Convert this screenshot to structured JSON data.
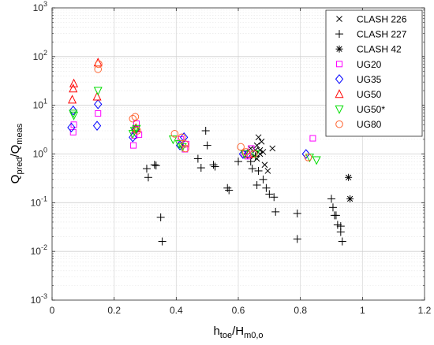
{
  "chart_data": {
    "type": "scatter",
    "xlabel": "h_toe/H_m0,o",
    "ylabel": "Q_pred/Q_meas",
    "x_ticks": [
      "0",
      "0.2",
      "0.4",
      "0.6",
      "0.8",
      "1",
      "1.2"
    ],
    "y_ticks": [
      "10^-3",
      "10^-2",
      "10^-1",
      "10^0",
      "10^1",
      "10^2",
      "10^3"
    ],
    "xlim": [
      0,
      1.2
    ],
    "ylim": [
      0.001,
      1000
    ],
    "y_scale": "log",
    "grid": true,
    "legend_position": "top-right",
    "series": [
      {
        "name": "CLASH 226",
        "marker": "x",
        "color": "#000000",
        "x": [
          0.655,
          0.66,
          0.665,
          0.67,
          0.675,
          0.68,
          0.64,
          0.65,
          0.66,
          0.67,
          0.685,
          0.695,
          0.71
        ],
        "y": [
          1.2,
          1.5,
          2.2,
          1.0,
          1.8,
          1.1,
          1.3,
          0.9,
          0.8,
          1.2,
          0.6,
          0.45,
          1.3
        ]
      },
      {
        "name": "CLASH 227",
        "marker": "+",
        "color": "#000000",
        "x": [
          0.305,
          0.31,
          0.33,
          0.335,
          0.35,
          0.355,
          0.42,
          0.47,
          0.48,
          0.495,
          0.5,
          0.52,
          0.525,
          0.565,
          0.57,
          0.6,
          0.64,
          0.645,
          0.655,
          0.66,
          0.665,
          0.68,
          0.69,
          0.7,
          0.715,
          0.72,
          0.79,
          0.79,
          0.9,
          0.905,
          0.91,
          0.915,
          0.92,
          0.93,
          0.935,
          0.93
        ],
        "y": [
          0.5,
          0.33,
          0.6,
          0.58,
          0.05,
          0.016,
          1.4,
          0.8,
          0.52,
          3.0,
          1.5,
          0.6,
          0.55,
          0.2,
          0.18,
          0.7,
          0.7,
          0.5,
          0.9,
          0.23,
          0.45,
          0.3,
          0.2,
          0.15,
          0.13,
          0.065,
          0.06,
          0.018,
          0.12,
          0.08,
          0.055,
          0.055,
          0.035,
          0.025,
          0.016,
          0.033
        ]
      },
      {
        "name": "CLASH 42",
        "marker": "*",
        "color": "#000000",
        "x": [
          0.955,
          0.96
        ],
        "y": [
          0.33,
          0.12
        ]
      },
      {
        "name": "UG20",
        "marker": "square",
        "color": "#ff00ff",
        "x": [
          0.068,
          0.07,
          0.148,
          0.262,
          0.265,
          0.268,
          0.272,
          0.28,
          0.415,
          0.428,
          0.432,
          0.62,
          0.63,
          0.642,
          0.84
        ],
        "y": [
          2.8,
          4.0,
          6.8,
          1.5,
          2.4,
          3.2,
          4.2,
          2.5,
          2.0,
          1.25,
          1.6,
          1.0,
          0.9,
          1.3,
          2.1
        ]
      },
      {
        "name": "UG35",
        "marker": "diamond",
        "color": "#0000ff",
        "x": [
          0.062,
          0.068,
          0.145,
          0.148,
          0.26,
          0.27,
          0.412,
          0.425,
          0.615,
          0.63,
          0.818
        ],
        "y": [
          3.5,
          7.8,
          3.8,
          10.5,
          2.2,
          3.2,
          1.5,
          2.2,
          1.0,
          1.0,
          1.0
        ]
      },
      {
        "name": "UG50",
        "marker": "triangle-up",
        "color": "#ff0000",
        "x": [
          0.065,
          0.068,
          0.07,
          0.145,
          0.148,
          0.27,
          0.632
        ],
        "y": [
          13.0,
          22.0,
          28.0,
          15.0,
          75.0,
          3.4,
          1.0
        ]
      },
      {
        "name": "UG50*",
        "marker": "triangle-down",
        "color": "#00dd00",
        "x": [
          0.07,
          0.068,
          0.148,
          0.26,
          0.265,
          0.272,
          0.39,
          0.41,
          0.42,
          0.62,
          0.655,
          0.83,
          0.852
        ],
        "y": [
          6.2,
          6.8,
          20.0,
          2.6,
          3.0,
          3.3,
          2.0,
          1.6,
          1.4,
          1.0,
          1.0,
          0.85,
          0.75
        ]
      },
      {
        "name": "UG80",
        "marker": "circle",
        "color": "#ff6633",
        "x": [
          0.148,
          0.15,
          0.26,
          0.268,
          0.275,
          0.395,
          0.418,
          0.428,
          0.43,
          0.608,
          0.625,
          0.65,
          0.825
        ],
        "y": [
          55.0,
          70.0,
          5.3,
          5.8,
          3.0,
          2.6,
          2.2,
          1.6,
          1.3,
          1.4,
          1.1,
          1.0,
          0.85
        ]
      }
    ]
  }
}
